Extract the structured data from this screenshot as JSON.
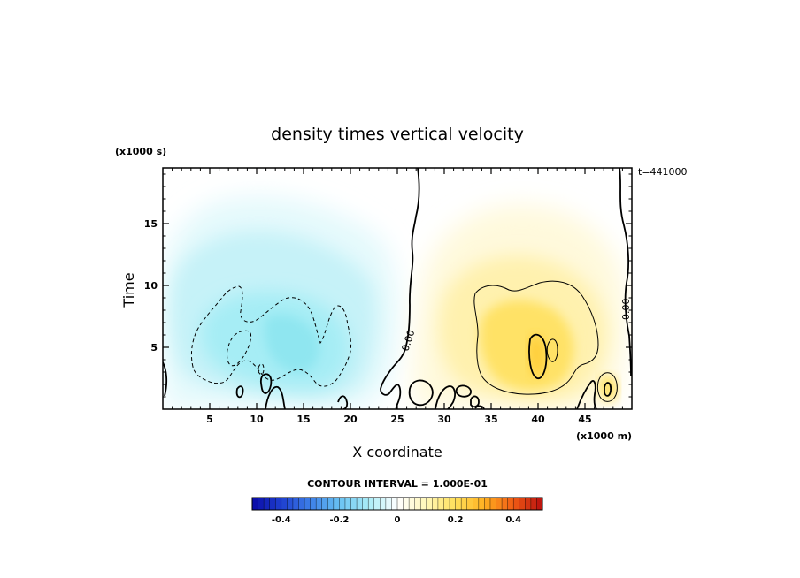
{
  "chart_data": {
    "type": "heatmap",
    "title": "density times vertical velocity",
    "xlabel": "X coordinate",
    "ylabel": "Time",
    "x_multiplier_label": "(x1000 m)",
    "y_multiplier_label": "(x1000 s)",
    "time_label": "t=441000",
    "contour_interval_label": "CONTOUR INTERVAL = 1.000E-01",
    "zero_contour_label": "0.00",
    "xlim": [
      0,
      50
    ],
    "ylim": [
      0,
      19.5
    ],
    "xticks": [
      5,
      10,
      15,
      20,
      25,
      30,
      35,
      40,
      45
    ],
    "yticks": [
      5,
      10,
      15
    ],
    "colorbar": {
      "range": [
        -0.5,
        0.5
      ],
      "ticks": [
        -0.4,
        -0.2,
        0,
        0.2,
        0.4
      ],
      "tick_labels": [
        "-0.4",
        "-0.2",
        "0",
        "0.2",
        "0.4"
      ],
      "colors": [
        "#0a0aa6",
        "#1e3fd0",
        "#3d7fe8",
        "#68c2f2",
        "#a9ecf7",
        "#ffffff",
        "#fff7b8",
        "#ffe05a",
        "#ffb020",
        "#f05a14",
        "#b80f0f"
      ]
    },
    "regions": [
      {
        "name": "negative-lobe",
        "sign": "negative",
        "x_range": [
          0,
          26
        ],
        "y_range": [
          0,
          16.5
        ],
        "peak_value": -0.2,
        "peak_x": 13,
        "peak_y": 5
      },
      {
        "name": "positive-lobe",
        "sign": "positive",
        "x_range": [
          27,
          50
        ],
        "y_range": [
          0,
          16.5
        ],
        "peak_value": 0.2,
        "peak_x": 40,
        "peak_y": 4.5
      }
    ]
  }
}
